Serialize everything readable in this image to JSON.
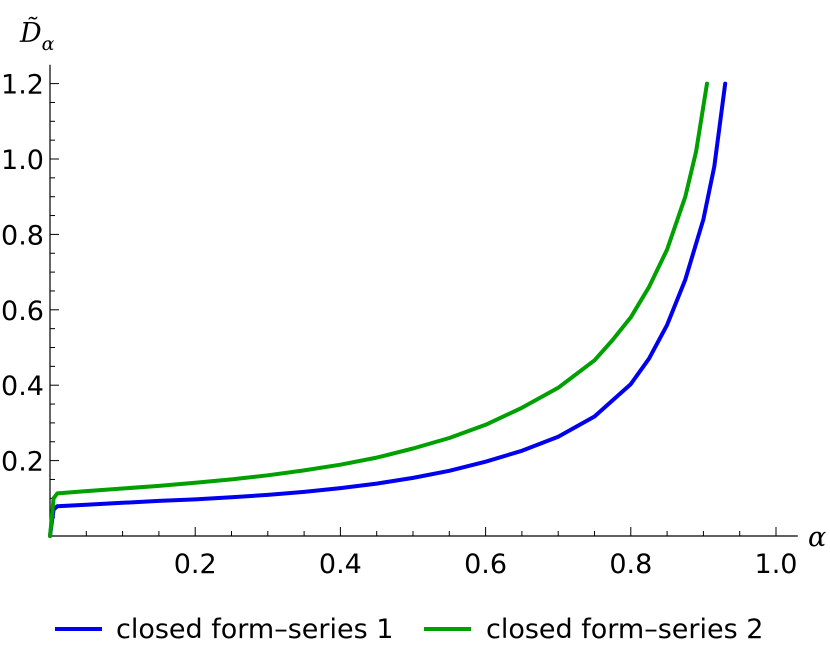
{
  "chart_data": {
    "type": "line",
    "xlabel": "α",
    "ylabel": "D̃α",
    "ylabel_parts": {
      "base": "D̃",
      "sub": "α"
    },
    "xlim": [
      0,
      1.03
    ],
    "ylim": [
      0,
      1.25
    ],
    "x_ticks": [
      0.2,
      0.4,
      0.6,
      0.8,
      1.0
    ],
    "x_tick_labels": [
      "0.2",
      "0.4",
      "0.6",
      "0.8",
      "1.0"
    ],
    "y_ticks": [
      0.2,
      0.4,
      0.6,
      0.8,
      1.0,
      1.2
    ],
    "y_tick_labels": [
      "0.2",
      "0.4",
      "0.6",
      "0.8",
      "1.0",
      "1.2"
    ],
    "grid": false,
    "legend_position": "bottom",
    "series": [
      {
        "name": "closed form–series 1",
        "color": "#0000ee",
        "points": [
          [
            0,
            0
          ],
          [
            0.002,
            0.03
          ],
          [
            0.005,
            0.07
          ],
          [
            0.01,
            0.079
          ],
          [
            0.05,
            0.083
          ],
          [
            0.1,
            0.088
          ],
          [
            0.15,
            0.093
          ],
          [
            0.2,
            0.097
          ],
          [
            0.25,
            0.103
          ],
          [
            0.3,
            0.109
          ],
          [
            0.35,
            0.117
          ],
          [
            0.4,
            0.127
          ],
          [
            0.45,
            0.139
          ],
          [
            0.5,
            0.154
          ],
          [
            0.55,
            0.173
          ],
          [
            0.6,
            0.197
          ],
          [
            0.65,
            0.226
          ],
          [
            0.7,
            0.263
          ],
          [
            0.75,
            0.317
          ],
          [
            0.8,
            0.403
          ],
          [
            0.825,
            0.47
          ],
          [
            0.85,
            0.56
          ],
          [
            0.875,
            0.68
          ],
          [
            0.9,
            0.84
          ],
          [
            0.915,
            0.98
          ],
          [
            0.93,
            1.2
          ]
        ]
      },
      {
        "name": "closed form–series 2",
        "color": "#00a000",
        "points": [
          [
            0,
            0
          ],
          [
            0.002,
            0.04
          ],
          [
            0.005,
            0.1
          ],
          [
            0.01,
            0.113
          ],
          [
            0.05,
            0.119
          ],
          [
            0.1,
            0.126
          ],
          [
            0.15,
            0.133
          ],
          [
            0.2,
            0.141
          ],
          [
            0.25,
            0.15
          ],
          [
            0.3,
            0.161
          ],
          [
            0.35,
            0.174
          ],
          [
            0.4,
            0.189
          ],
          [
            0.45,
            0.208
          ],
          [
            0.5,
            0.232
          ],
          [
            0.55,
            0.26
          ],
          [
            0.6,
            0.295
          ],
          [
            0.65,
            0.34
          ],
          [
            0.7,
            0.393
          ],
          [
            0.75,
            0.466
          ],
          [
            0.775,
            0.52
          ],
          [
            0.8,
            0.58
          ],
          [
            0.825,
            0.66
          ],
          [
            0.85,
            0.76
          ],
          [
            0.875,
            0.9
          ],
          [
            0.89,
            1.02
          ],
          [
            0.905,
            1.2
          ]
        ]
      }
    ]
  }
}
